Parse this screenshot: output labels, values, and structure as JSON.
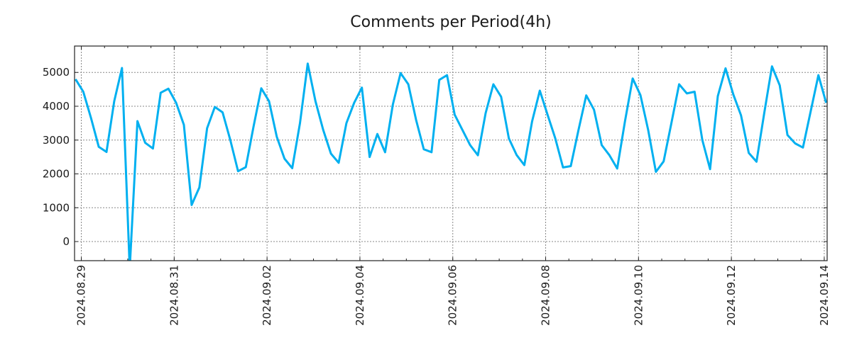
{
  "chart_data": {
    "type": "line",
    "title": "Comments per Period(4h)",
    "xlabel": "",
    "ylabel": "",
    "x_unit": "hours since 2024.08.29 00:00",
    "x_start_hours": -3,
    "x_step_hours": 4,
    "xlim_hours": [
      -3.5,
      385.5
    ],
    "ylim": [
      -565,
      5780
    ],
    "grid": true,
    "line_color": "#00b0f0",
    "y_ticks": [
      0,
      1000,
      2000,
      3000,
      4000,
      5000
    ],
    "x_ticks": [
      {
        "label": "2024.08.29",
        "hours": 0
      },
      {
        "label": "2024.08.31",
        "hours": 48
      },
      {
        "label": "2024.09.02",
        "hours": 96
      },
      {
        "label": "2024.09.04",
        "hours": 144
      },
      {
        "label": "2024.09.06",
        "hours": 192
      },
      {
        "label": "2024.09.08",
        "hours": 240
      },
      {
        "label": "2024.09.10",
        "hours": 288
      },
      {
        "label": "2024.09.12",
        "hours": 336
      },
      {
        "label": "2024.09.14",
        "hours": 384
      }
    ],
    "values": [
      4800,
      4430,
      3650,
      2800,
      2650,
      4150,
      5130,
      -800,
      3560,
      2920,
      2750,
      4400,
      4520,
      4100,
      3450,
      1080,
      1600,
      3350,
      3980,
      3820,
      3000,
      2080,
      2200,
      3400,
      4530,
      4150,
      3100,
      2450,
      2170,
      3500,
      5260,
      4150,
      3300,
      2600,
      2330,
      3500,
      4100,
      4550,
      2500,
      3180,
      2640,
      4050,
      4980,
      4650,
      3600,
      2730,
      2640,
      4780,
      4920,
      3750,
      3300,
      2850,
      2550,
      3800,
      4650,
      4280,
      3050,
      2560,
      2260,
      3550,
      4460,
      3750,
      3050,
      2190,
      2230,
      3300,
      4320,
      3900,
      2850,
      2550,
      2160,
      3550,
      4820,
      4330,
      3300,
      2060,
      2370,
      3500,
      4650,
      4380,
      4430,
      3000,
      2140,
      4300,
      5120,
      4350,
      3730,
      2620,
      2360,
      3800,
      5180,
      4620,
      3150,
      2900,
      2780,
      3850,
      4920,
      4100
    ]
  }
}
